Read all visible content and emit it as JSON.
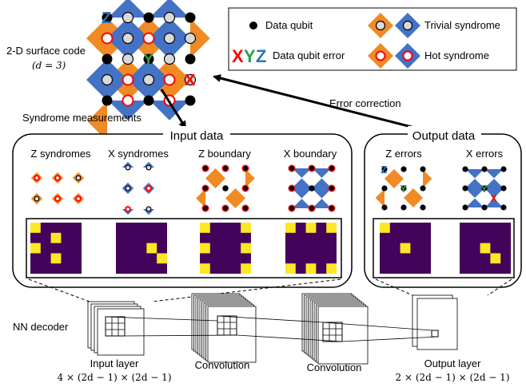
{
  "colors": {
    "orange": "#f08a24",
    "blue": "#4472c4",
    "purple": "#44035a",
    "yellow": "#fde725",
    "red": "#ff0000",
    "green": "#2e9e48",
    "error_x": "#ff0000",
    "error_y": "#2e9e48",
    "error_z": "#2e75b6"
  },
  "top": {
    "surface_code_label": "2-D surface code",
    "surface_code_param": "(d = 3)",
    "syndrome_measurements": "Syndrome measurements",
    "error_correction": "Error correction"
  },
  "legend": {
    "data_qubit": "Data qubit",
    "data_qubit_error": "Data qubit error",
    "error_letters": [
      "X",
      "Y",
      "Z"
    ],
    "trivial_syndrome": "Trivial syndrome",
    "hot_syndrome": "Hot syndrome"
  },
  "input_panel": {
    "title": "Input data",
    "channels": [
      "Z syndromes",
      "X syndromes",
      "Z boundary",
      "X boundary"
    ]
  },
  "output_panel": {
    "title": "Output data",
    "channels": [
      "Z errors",
      "X errors"
    ]
  },
  "nn": {
    "label": "NN decoder",
    "input_layer": "Input layer",
    "input_shape": "4 × (2d − 1) × (2d − 1)",
    "conv1": "Convolution",
    "conv2": "Convolution",
    "output_layer": "Output layer",
    "output_shape": "2 × (2d − 1) × (2d − 1)"
  },
  "grid_marks": {
    "z_syndromes": [
      [
        0,
        0
      ],
      [
        0,
        2
      ],
      [
        2,
        1
      ],
      [
        2,
        3
      ]
    ],
    "x_syndromes": [
      [
        3,
        2
      ],
      [
        4,
        3
      ]
    ],
    "z_boundary": [
      [
        0,
        0
      ],
      [
        0,
        2
      ],
      [
        0,
        4
      ],
      [
        4,
        0
      ],
      [
        4,
        2
      ],
      [
        4,
        4
      ]
    ],
    "x_boundary": [
      [
        0,
        0
      ],
      [
        2,
        0
      ],
      [
        4,
        0
      ],
      [
        0,
        4
      ],
      [
        2,
        4
      ],
      [
        4,
        4
      ]
    ],
    "z_errors": [
      [
        0,
        0
      ],
      [
        2,
        2
      ]
    ],
    "x_errors": [
      [
        2,
        2
      ],
      [
        3,
        3
      ]
    ]
  }
}
